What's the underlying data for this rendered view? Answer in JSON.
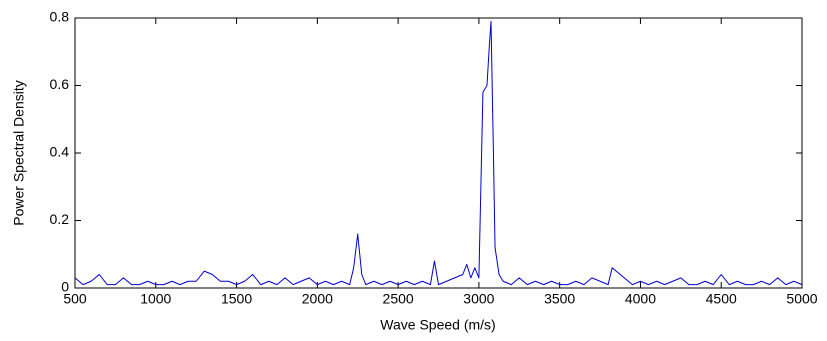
{
  "chart_data": {
    "type": "line",
    "xlabel": "Wave Speed (m/s)",
    "ylabel": "Power Spectral Density",
    "color": "#0000cc",
    "x": [
      500,
      550,
      600,
      650,
      700,
      750,
      800,
      850,
      900,
      950,
      1000,
      1050,
      1100,
      1150,
      1200,
      1250,
      1300,
      1350,
      1400,
      1450,
      1500,
      1550,
      1600,
      1650,
      1700,
      1750,
      1800,
      1850,
      1900,
      1950,
      2000,
      2050,
      2100,
      2150,
      2200,
      2225,
      2250,
      2275,
      2300,
      2350,
      2400,
      2450,
      2500,
      2550,
      2600,
      2650,
      2700,
      2725,
      2750,
      2800,
      2850,
      2900,
      2925,
      2950,
      2975,
      3000,
      3025,
      3050,
      3065,
      3075,
      3090,
      3100,
      3125,
      3150,
      3200,
      3250,
      3300,
      3350,
      3400,
      3450,
      3500,
      3550,
      3600,
      3650,
      3700,
      3750,
      3800,
      3825,
      3850,
      3900,
      3950,
      4000,
      4050,
      4100,
      4150,
      4200,
      4250,
      4300,
      4350,
      4400,
      4450,
      4500,
      4550,
      4600,
      4650,
      4700,
      4750,
      4800,
      4850,
      4900,
      4950,
      5000
    ],
    "values": [
      0.03,
      0.01,
      0.02,
      0.04,
      0.01,
      0.01,
      0.03,
      0.01,
      0.01,
      0.02,
      0.01,
      0.01,
      0.02,
      0.01,
      0.02,
      0.02,
      0.05,
      0.04,
      0.02,
      0.02,
      0.01,
      0.02,
      0.04,
      0.01,
      0.02,
      0.01,
      0.03,
      0.01,
      0.02,
      0.03,
      0.01,
      0.02,
      0.01,
      0.02,
      0.01,
      0.06,
      0.16,
      0.04,
      0.01,
      0.02,
      0.01,
      0.02,
      0.01,
      0.02,
      0.01,
      0.02,
      0.01,
      0.08,
      0.01,
      0.02,
      0.03,
      0.04,
      0.07,
      0.03,
      0.06,
      0.03,
      0.58,
      0.6,
      0.72,
      0.79,
      0.4,
      0.12,
      0.04,
      0.02,
      0.01,
      0.03,
      0.01,
      0.02,
      0.01,
      0.02,
      0.01,
      0.01,
      0.02,
      0.01,
      0.03,
      0.02,
      0.01,
      0.06,
      0.05,
      0.03,
      0.01,
      0.02,
      0.01,
      0.02,
      0.01,
      0.02,
      0.03,
      0.01,
      0.01,
      0.02,
      0.01,
      0.04,
      0.01,
      0.02,
      0.01,
      0.01,
      0.02,
      0.01,
      0.03,
      0.01,
      0.02,
      0.01
    ],
    "xlim": [
      500,
      5000
    ],
    "ylim": [
      0,
      0.8
    ],
    "xticks": [
      500,
      1000,
      1500,
      2000,
      2500,
      3000,
      3500,
      4000,
      4500,
      5000
    ],
    "yticks": [
      0,
      0.2,
      0.4,
      0.6,
      0.8
    ],
    "grid": false
  }
}
